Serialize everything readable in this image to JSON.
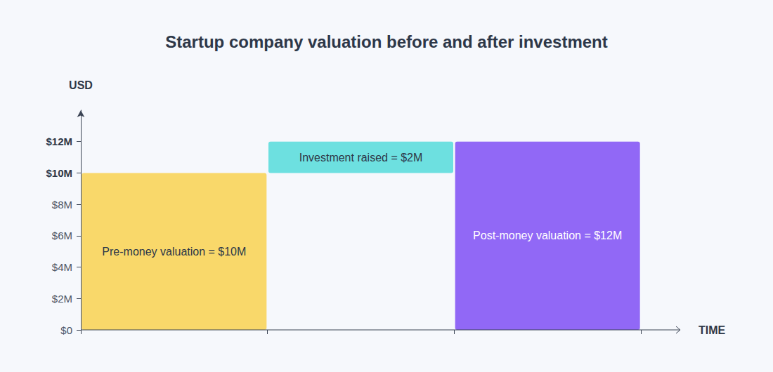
{
  "chart_data": {
    "type": "waterfall",
    "title": "Startup company valuation before and after investment",
    "xlabel": "TIME",
    "ylabel": "USD",
    "categories": [
      null,
      null,
      null
    ],
    "values": [
      10000000,
      2000000,
      12000000
    ],
    "value_labels": [
      "Pre-money valuation = $10M",
      "Investment raised = $2M",
      "Post-money valuation = $12M"
    ],
    "colors": [
      "#f9d86a",
      "#6de0e0",
      "#9168f6"
    ],
    "ylim": [
      0,
      14000000
    ],
    "yticks": [
      {
        "value": 0,
        "label": "$0"
      },
      {
        "value": 2000000,
        "label": "$2M"
      },
      {
        "value": 4000000,
        "label": "$4M"
      },
      {
        "value": 6000000,
        "label": "$6M"
      },
      {
        "value": 8000000,
        "label": "$8M"
      },
      {
        "value": 10000000,
        "label": "$10M"
      },
      {
        "value": 12000000,
        "label": "$12M"
      }
    ],
    "grid": false,
    "data_labels": true
  }
}
